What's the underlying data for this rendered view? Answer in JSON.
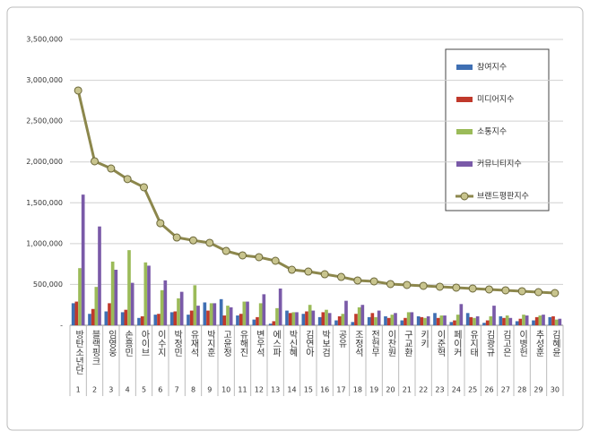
{
  "chart_data": {
    "type": "bar",
    "categories": [
      "방탄소년단",
      "블랙핑크",
      "임영웅",
      "손흥민",
      "아이브",
      "이수지",
      "박정민",
      "유재석",
      "박지훈",
      "고윤정",
      "유해진",
      "변우석",
      "에스파",
      "박신혜",
      "김연아",
      "박보검",
      "공유",
      "조정석",
      "전현무",
      "이찬원",
      "구교환",
      "키키",
      "이준혁",
      "페이커",
      "유지태",
      "김광규",
      "김고은",
      "이병헌",
      "추성훈",
      "김혜윤"
    ],
    "category_numbers": [
      1,
      2,
      3,
      4,
      5,
      6,
      7,
      8,
      9,
      10,
      11,
      12,
      13,
      14,
      15,
      16,
      17,
      18,
      19,
      20,
      21,
      22,
      23,
      24,
      25,
      26,
      27,
      28,
      29,
      30
    ],
    "ylim": [
      0,
      3500000
    ],
    "yticks": [
      {
        "value": 0,
        "label": "-"
      },
      {
        "value": 500000,
        "label": "500,000"
      },
      {
        "value": 1000000,
        "label": "1,000,000"
      },
      {
        "value": 1500000,
        "label": "1,500,000"
      },
      {
        "value": 2000000,
        "label": "2,000,000"
      },
      {
        "value": 2500000,
        "label": "2,500,000"
      },
      {
        "value": 3000000,
        "label": "3,000,000"
      },
      {
        "value": 3500000,
        "label": "3,500,000"
      }
    ],
    "grid": true,
    "series": [
      {
        "name": "참여지수",
        "color": "#3f6fb3",
        "type": "bar",
        "values": [
          270000,
          140000,
          170000,
          160000,
          90000,
          130000,
          160000,
          130000,
          280000,
          320000,
          120000,
          70000,
          20000,
          180000,
          140000,
          100000,
          60000,
          40000,
          100000,
          110000,
          60000,
          110000,
          150000,
          40000,
          150000,
          30000,
          110000,
          50000,
          60000,
          100000
        ]
      },
      {
        "name": "미디어지수",
        "color": "#c0392b",
        "type": "bar",
        "values": [
          290000,
          200000,
          270000,
          190000,
          110000,
          140000,
          170000,
          180000,
          180000,
          120000,
          140000,
          100000,
          50000,
          150000,
          170000,
          160000,
          110000,
          140000,
          150000,
          90000,
          90000,
          100000,
          90000,
          60000,
          100000,
          60000,
          90000,
          80000,
          100000,
          110000
        ]
      },
      {
        "name": "소통지수",
        "color": "#9bbb59",
        "type": "bar",
        "values": [
          700000,
          470000,
          780000,
          920000,
          770000,
          430000,
          330000,
          490000,
          270000,
          240000,
          290000,
          270000,
          210000,
          160000,
          250000,
          190000,
          140000,
          220000,
          100000,
          130000,
          160000,
          90000,
          120000,
          130000,
          90000,
          110000,
          120000,
          130000,
          120000,
          70000
        ]
      },
      {
        "name": "커뮤니티지수",
        "color": "#7a5aa8",
        "type": "bar",
        "values": [
          1600000,
          1210000,
          680000,
          520000,
          730000,
          550000,
          410000,
          240000,
          270000,
          220000,
          290000,
          380000,
          450000,
          160000,
          180000,
          150000,
          300000,
          250000,
          180000,
          150000,
          160000,
          110000,
          120000,
          260000,
          110000,
          240000,
          90000,
          120000,
          130000,
          80000
        ]
      },
      {
        "name": "브랜드평판지수",
        "color": "#8c874c",
        "type": "line",
        "values": [
          2875000,
          2008000,
          1920000,
          1790000,
          1690000,
          1250000,
          1075000,
          1040000,
          1010000,
          910000,
          856000,
          834000,
          790000,
          680000,
          658000,
          625000,
          592000,
          549000,
          538000,
          505000,
          494000,
          483000,
          472000,
          461000,
          450000,
          439000,
          428000,
          417000,
          406000,
          395000
        ]
      }
    ]
  }
}
